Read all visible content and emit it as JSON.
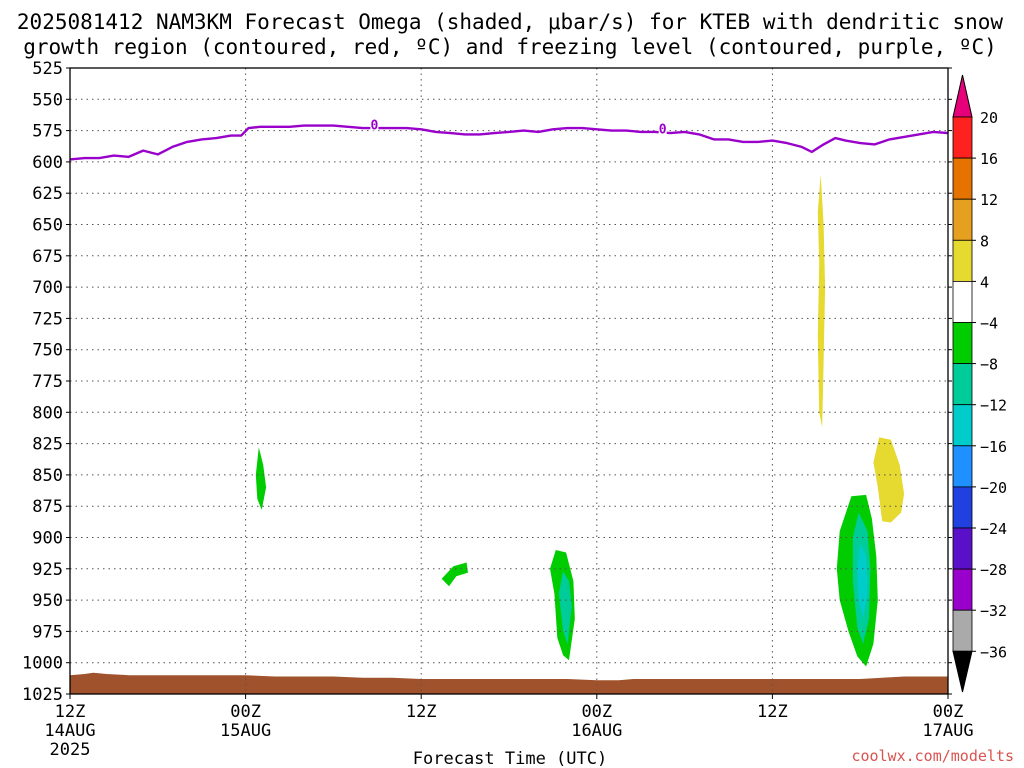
{
  "title_line1": "2025081412 NAM3KM Forecast Omega (shaded, μbar/s) for KTEB with dendritic snow",
  "title_line2": "growth region (contoured, red, ºC) and freezing level (contoured, purple, ºC)",
  "xlabel": "Forecast Time (UTC)",
  "credit": "coolwx.com/modelts",
  "chart_data": {
    "type": "area",
    "title": "2025081412 NAM3KM Forecast Omega (shaded, μbar/s) for KTEB with dendritic snow growth region (contoured, red, ºC) and freezing level (contoured, purple, ºC)",
    "xlabel": "Forecast Time (UTC)",
    "ylabel": "",
    "x_unit": "hours since 2025-08-14 12Z",
    "xlim": [
      0,
      60
    ],
    "ylim": [
      525,
      1025
    ],
    "y_axis": "pressure (hPa), inverted",
    "grid": true,
    "x_ticks": [
      {
        "x": 0,
        "label": "12Z",
        "date": "14AUG",
        "year": "2025"
      },
      {
        "x": 12,
        "label": "00Z",
        "date": "15AUG",
        "year": ""
      },
      {
        "x": 24,
        "label": "12Z",
        "date": "",
        "year": ""
      },
      {
        "x": 36,
        "label": "00Z",
        "date": "16AUG",
        "year": ""
      },
      {
        "x": 48,
        "label": "12Z",
        "date": "",
        "year": ""
      },
      {
        "x": 60,
        "label": "00Z",
        "date": "17AUG",
        "year": ""
      }
    ],
    "y_ticks": [
      525,
      550,
      575,
      600,
      625,
      650,
      675,
      700,
      725,
      750,
      775,
      800,
      825,
      850,
      875,
      900,
      925,
      950,
      975,
      1000,
      1025
    ],
    "freezing_level": {
      "name": "freezing level (0 ºC)",
      "color": "#9900cc",
      "label": "0",
      "label_positions": [
        [
          20.8,
          571
        ],
        [
          40.5,
          574
        ]
      ],
      "points": [
        [
          0,
          598
        ],
        [
          1,
          597
        ],
        [
          2,
          597
        ],
        [
          3,
          595
        ],
        [
          4,
          596
        ],
        [
          5,
          591
        ],
        [
          6,
          594
        ],
        [
          7,
          588
        ],
        [
          8,
          584
        ],
        [
          9,
          582
        ],
        [
          10,
          581
        ],
        [
          11,
          579
        ],
        [
          11.7,
          579
        ],
        [
          12.2,
          573
        ],
        [
          13,
          572
        ],
        [
          14,
          572
        ],
        [
          15,
          572
        ],
        [
          16,
          571
        ],
        [
          17,
          571
        ],
        [
          18,
          571
        ],
        [
          19,
          572
        ],
        [
          20,
          573
        ],
        [
          21,
          573
        ],
        [
          22,
          573
        ],
        [
          23,
          573
        ],
        [
          24,
          574
        ],
        [
          25,
          576
        ],
        [
          26,
          577
        ],
        [
          27,
          578
        ],
        [
          28,
          578
        ],
        [
          29,
          577
        ],
        [
          30,
          576
        ],
        [
          31,
          575
        ],
        [
          32,
          576
        ],
        [
          33,
          574
        ],
        [
          34,
          573
        ],
        [
          35,
          573
        ],
        [
          36,
          574
        ],
        [
          37,
          575
        ],
        [
          38,
          575
        ],
        [
          39,
          576
        ],
        [
          40,
          576
        ],
        [
          41,
          577
        ],
        [
          42,
          576
        ],
        [
          43,
          578
        ],
        [
          44,
          582
        ],
        [
          45,
          582
        ],
        [
          46,
          584
        ],
        [
          47,
          584
        ],
        [
          48,
          583
        ],
        [
          49,
          585
        ],
        [
          50,
          588
        ],
        [
          50.7,
          592
        ],
        [
          51.5,
          586
        ],
        [
          52.3,
          581
        ],
        [
          53,
          583
        ],
        [
          54,
          585
        ],
        [
          55,
          586
        ],
        [
          56,
          582
        ],
        [
          57,
          580
        ],
        [
          58,
          578
        ],
        [
          59,
          576
        ],
        [
          60,
          577
        ]
      ]
    },
    "omega_areas": [
      {
        "fill": "#00cc00",
        "polygon": [
          [
            12.9,
            828
          ],
          [
            13.2,
            842
          ],
          [
            13.4,
            860
          ],
          [
            13.1,
            878
          ],
          [
            12.8,
            869
          ],
          [
            12.7,
            850
          ]
        ]
      },
      {
        "fill": "#00cc00",
        "polygon": [
          [
            26.2,
            923
          ],
          [
            27.1,
            920
          ],
          [
            27.2,
            928
          ],
          [
            26.4,
            931
          ],
          [
            25.9,
            939
          ],
          [
            25.4,
            933
          ]
        ]
      },
      {
        "fill": "#00cc00",
        "polygon": [
          [
            33.2,
            910
          ],
          [
            33.9,
            912
          ],
          [
            34.4,
            935
          ],
          [
            34.5,
            965
          ],
          [
            34.1,
            998
          ],
          [
            33.7,
            994
          ],
          [
            33.3,
            980
          ],
          [
            33.1,
            945
          ],
          [
            32.8,
            925
          ]
        ]
      },
      {
        "fill": "#00cc99",
        "polygon": [
          [
            33.7,
            927
          ],
          [
            34.1,
            935
          ],
          [
            34.3,
            955
          ],
          [
            34.0,
            985
          ],
          [
            33.7,
            975
          ],
          [
            33.4,
            945
          ]
        ]
      },
      {
        "fill": "#00cc00",
        "polygon": [
          [
            53.4,
            867
          ],
          [
            54.4,
            866
          ],
          [
            54.8,
            885
          ],
          [
            55.1,
            915
          ],
          [
            55.2,
            950
          ],
          [
            54.9,
            985
          ],
          [
            54.4,
            1003
          ],
          [
            53.8,
            995
          ],
          [
            53.2,
            975
          ],
          [
            52.6,
            950
          ],
          [
            52.4,
            925
          ],
          [
            52.6,
            895
          ]
        ]
      },
      {
        "fill": "#00cc99",
        "polygon": [
          [
            53.9,
            880
          ],
          [
            54.5,
            895
          ],
          [
            54.7,
            925
          ],
          [
            54.6,
            965
          ],
          [
            54.2,
            985
          ],
          [
            53.8,
            972
          ],
          [
            53.5,
            935
          ],
          [
            53.5,
            900
          ]
        ]
      },
      {
        "fill": "#00cccc",
        "polygon": [
          [
            54.0,
            905
          ],
          [
            54.4,
            915
          ],
          [
            54.5,
            945
          ],
          [
            54.2,
            965
          ],
          [
            53.9,
            950
          ],
          [
            53.8,
            925
          ]
        ]
      },
      {
        "fill": "#e6d930",
        "polygon": [
          [
            51.3,
            610
          ],
          [
            51.5,
            650
          ],
          [
            51.6,
            700
          ],
          [
            51.5,
            760
          ],
          [
            51.4,
            812
          ],
          [
            51.2,
            800
          ],
          [
            51.1,
            740
          ],
          [
            51.2,
            680
          ],
          [
            51.1,
            640
          ]
        ]
      },
      {
        "fill": "#e6d930",
        "polygon": [
          [
            55.3,
            820
          ],
          [
            56.1,
            822
          ],
          [
            56.7,
            842
          ],
          [
            57.0,
            865
          ],
          [
            56.8,
            880
          ],
          [
            56.1,
            888
          ],
          [
            55.5,
            887
          ],
          [
            55.2,
            860
          ],
          [
            54.9,
            840
          ]
        ]
      }
    ],
    "surface": {
      "fill": "#a0522d",
      "points": [
        [
          0,
          1010
        ],
        [
          1,
          1009
        ],
        [
          1.6,
          1008
        ],
        [
          2.5,
          1009
        ],
        [
          4,
          1010
        ],
        [
          6,
          1010
        ],
        [
          8,
          1010
        ],
        [
          10,
          1010
        ],
        [
          12,
          1010
        ],
        [
          14,
          1011
        ],
        [
          16,
          1011
        ],
        [
          18,
          1011
        ],
        [
          20,
          1012
        ],
        [
          22,
          1012
        ],
        [
          24,
          1013
        ],
        [
          26,
          1013
        ],
        [
          28,
          1013
        ],
        [
          30,
          1013
        ],
        [
          32,
          1013
        ],
        [
          34,
          1013
        ],
        [
          36,
          1014
        ],
        [
          37.5,
          1014
        ],
        [
          38.5,
          1013
        ],
        [
          40,
          1013
        ],
        [
          42,
          1013
        ],
        [
          44,
          1013
        ],
        [
          46,
          1013
        ],
        [
          48,
          1013
        ],
        [
          50,
          1013
        ],
        [
          52,
          1013
        ],
        [
          54,
          1013
        ],
        [
          55.5,
          1012
        ],
        [
          57,
          1011
        ],
        [
          58.5,
          1011
        ],
        [
          60,
          1011
        ]
      ]
    },
    "colorbar": {
      "top_label": "20",
      "labels": [
        "16",
        "12",
        "8",
        "4",
        "−4",
        "−8",
        "−12",
        "−16",
        "−20",
        "−24",
        "−28",
        "−32",
        "−36"
      ],
      "colors": [
        "#ff2020",
        "#e67300",
        "#e6a020",
        "#e6d930",
        "#ffffff",
        "#00cc00",
        "#00cc99",
        "#00cccc",
        "#1e90ff",
        "#2040e0",
        "#5a10c8",
        "#9900cc",
        "#aaaaaa"
      ],
      "top_arrow_color": "#e6007a",
      "bottom_arrow_color": "#000000"
    }
  }
}
